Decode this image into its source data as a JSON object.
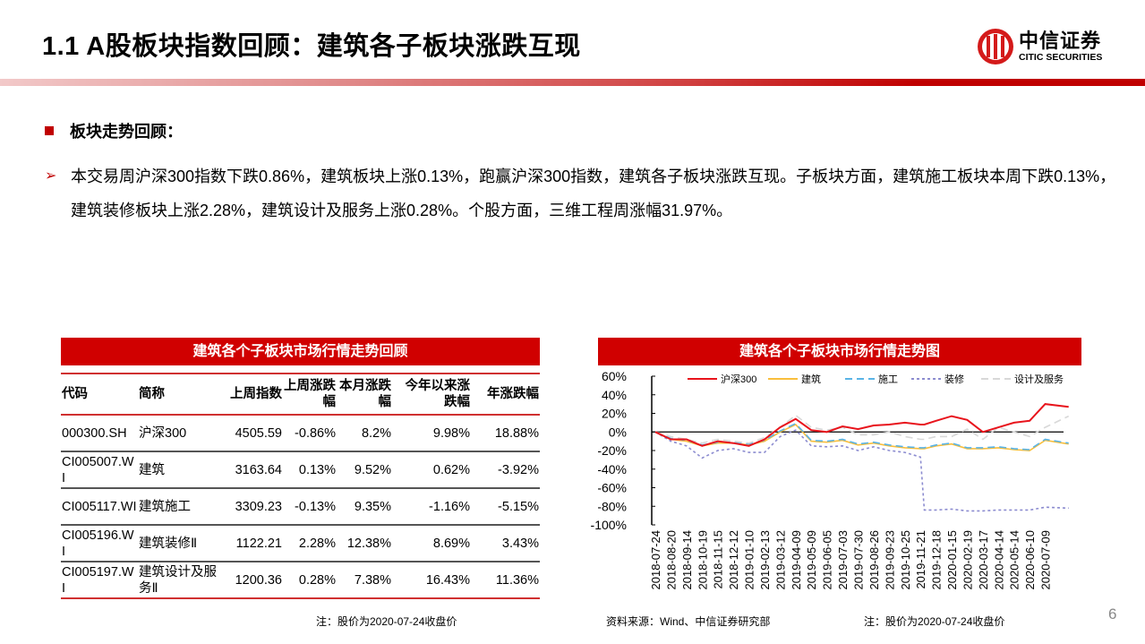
{
  "header": {
    "title": "1.1 A股板块指数回顾：建筑各子板块涨跌互现",
    "logo_cn": "中信证券",
    "logo_en": "CITIC SECURITIES"
  },
  "section": {
    "heading": "板块走势回顾：",
    "paragraph": "本交易周沪深300指数下跌0.86%，建筑板块上涨0.13%，跑赢沪深300指数，建筑各子板块涨跌互现。子板块方面，建筑施工板块本周下跌0.13%，建筑装修板块上涨2.28%，建筑设计及服务上涨0.28%。个股方面，三维工程周涨幅31.97%。"
  },
  "table": {
    "title": "建筑各个子板块市场行情走势回顾",
    "headers": [
      "代码",
      "简称",
      "上周指数",
      "上周涨跌幅",
      "本月涨跌幅",
      "今年以来涨跌幅",
      "年涨跌幅"
    ],
    "rows": [
      [
        "000300.SH",
        "沪深300",
        "4505.59",
        "-0.86%",
        "8.2%",
        "9.98%",
        "18.88%"
      ],
      [
        "CI005007.WI",
        "建筑",
        "3163.64",
        "0.13%",
        "9.52%",
        "0.62%",
        "-3.92%"
      ],
      [
        "CI005117.WI",
        "建筑施工",
        "3309.23",
        "-0.13%",
        "9.35%",
        "-1.16%",
        "-5.15%"
      ],
      [
        "CI005196.WI",
        "建筑装修Ⅱ",
        "1122.21",
        "2.28%",
        "12.38%",
        "8.69%",
        "3.43%"
      ],
      [
        "CI005197.WI",
        "建筑设计及服务Ⅱ",
        "1200.36",
        "0.28%",
        "7.38%",
        "16.43%",
        "11.36%"
      ]
    ],
    "note": "注：股价为2020-07-24收盘价"
  },
  "chart_data": {
    "type": "line",
    "title": "建筑各个子板块市场行情走势图",
    "ylim": [
      -100,
      60
    ],
    "yticks": [
      "60%",
      "40%",
      "20%",
      "0%",
      "-20%",
      "-40%",
      "-60%",
      "-80%",
      "-100%"
    ],
    "xticks": [
      "2018-07-24",
      "2018-08-20",
      "2018-09-14",
      "2018-10-19",
      "2018-11-15",
      "2018-12-12",
      "2019-01-10",
      "2019-02-13",
      "2019-03-12",
      "2019-04-09",
      "2019-05-09",
      "2019-06-05",
      "2019-07-03",
      "2019-07-30",
      "2019-08-26",
      "2019-09-23",
      "2019-10-25",
      "2019-11-21",
      "2019-12-18",
      "2020-01-15",
      "2020-02-19",
      "2020-03-17",
      "2020-04-14",
      "2020-05-14",
      "2020-06-10",
      "2020-07-09"
    ],
    "x_index": [
      0,
      1,
      2,
      3,
      4,
      5,
      6,
      7,
      8,
      9,
      10,
      11,
      12,
      13,
      14,
      15,
      16,
      17,
      17.25,
      18,
      19,
      20,
      21,
      22,
      23,
      24,
      25,
      26.5
    ],
    "series": [
      {
        "name": "沪深300",
        "color": "#e8141c",
        "dash": "",
        "values": [
          0,
          -8,
          -8,
          -15,
          -10,
          -12,
          -15,
          -8,
          5,
          14,
          2,
          0,
          6,
          3,
          7,
          8,
          10,
          8,
          8,
          12,
          17,
          13,
          0,
          5,
          10,
          12,
          30,
          27
        ]
      },
      {
        "name": "建筑",
        "color": "#f9be3c",
        "dash": "",
        "values": [
          0,
          -8,
          -10,
          -15,
          -12,
          -12,
          -14,
          -10,
          0,
          8,
          -10,
          -11,
          -9,
          -14,
          -12,
          -15,
          -17,
          -18,
          -18,
          -15,
          -13,
          -18,
          -18,
          -17,
          -19,
          -20,
          -9,
          -13
        ]
      },
      {
        "name": "施工",
        "color": "#5ab4e6",
        "dash": "8,5",
        "values": [
          0,
          -7,
          -9,
          -14,
          -11,
          -11,
          -13,
          -9,
          1,
          9,
          -9,
          -10,
          -8,
          -13,
          -11,
          -14,
          -16,
          -17,
          -17,
          -14,
          -12,
          -17,
          -17,
          -16,
          -18,
          -19,
          -8,
          -12
        ]
      },
      {
        "name": "装修",
        "color": "#8c8cd0",
        "dash": "3,3",
        "values": [
          0,
          -10,
          -15,
          -28,
          -20,
          -18,
          -22,
          -22,
          -5,
          2,
          -15,
          -16,
          -15,
          -20,
          -16,
          -20,
          -22,
          -27,
          -84,
          -84,
          -83,
          -85,
          -85,
          -84,
          -84,
          -84,
          -81,
          -82
        ]
      },
      {
        "name": "设计及服务",
        "color": "#d8d8d8",
        "dash": "8,5",
        "values": [
          0,
          -5,
          -8,
          -12,
          -8,
          -10,
          -12,
          -6,
          5,
          18,
          5,
          2,
          5,
          -3,
          -3,
          0,
          -5,
          -8,
          -8,
          -5,
          -5,
          3,
          -8,
          5,
          0,
          -5,
          5,
          17
        ]
      }
    ],
    "legend": "top"
  },
  "notes": {
    "source": "资料来源：Wind、中信证券研究部",
    "chart_note": "注：股价为2020-07-24收盘价"
  },
  "page_number": "6"
}
